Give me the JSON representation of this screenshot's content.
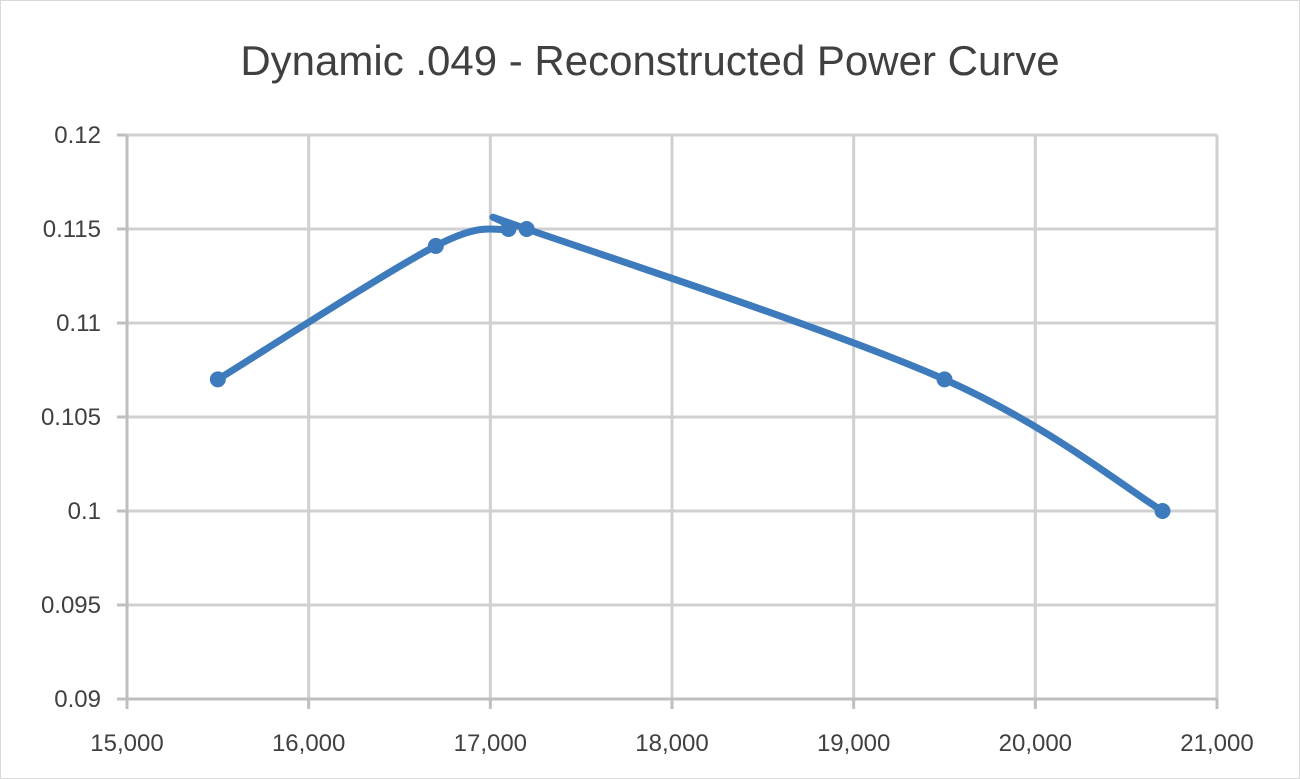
{
  "chart_data": {
    "type": "line",
    "title": "Dynamic .049 - Reconstructed Power Curve",
    "xlabel": "",
    "ylabel": "",
    "xlim": [
      15000,
      21000
    ],
    "ylim": [
      0.09,
      0.12
    ],
    "x_ticks": [
      {
        "value": 15000,
        "label": "15,000"
      },
      {
        "value": 16000,
        "label": "16,000"
      },
      {
        "value": 17000,
        "label": "17,000"
      },
      {
        "value": 18000,
        "label": "18,000"
      },
      {
        "value": 19000,
        "label": "19,000"
      },
      {
        "value": 20000,
        "label": "20,000"
      },
      {
        "value": 21000,
        "label": "21,000"
      }
    ],
    "y_ticks": [
      {
        "value": 0.09,
        "label": "0.09"
      },
      {
        "value": 0.095,
        "label": "0.095"
      },
      {
        "value": 0.1,
        "label": "0.1"
      },
      {
        "value": 0.105,
        "label": "0.105"
      },
      {
        "value": 0.11,
        "label": "0.11"
      },
      {
        "value": 0.115,
        "label": "0.115"
      },
      {
        "value": 0.12,
        "label": "0.12"
      }
    ],
    "grid": true,
    "smooth": true,
    "legend": "none",
    "series": [
      {
        "color": "#3e7bbd",
        "x": [
          15500,
          16700,
          17100,
          17200,
          19500,
          20700
        ],
        "y": [
          0.107,
          0.1141,
          0.115,
          0.115,
          0.107,
          0.1
        ]
      }
    ]
  }
}
